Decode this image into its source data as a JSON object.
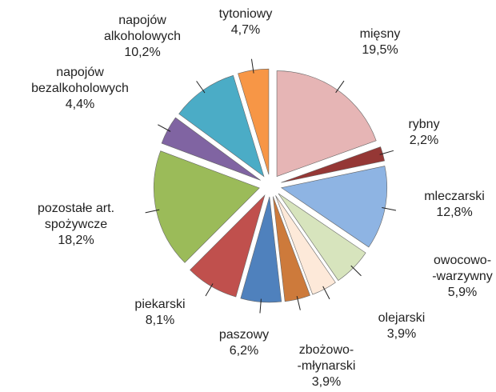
{
  "chart_data": {
    "type": "pie",
    "categories": [
      "mięsny",
      "rybny",
      "mleczarski",
      "owocowo-\n-warzywny",
      "olejarski",
      "zbożowo-\n-młynarski",
      "paszowy",
      "piekarski",
      "pozostałe art.\nspożywcze",
      "napojów\nbezalkoholowych",
      "napojów\nalkoholowych",
      "tytoniowy"
    ],
    "values": [
      19.5,
      2.2,
      12.8,
      5.9,
      3.9,
      3.9,
      6.2,
      8.1,
      18.2,
      4.4,
      10.2,
      4.7
    ],
    "value_labels": [
      "19,5%",
      "2,2%",
      "12,8%",
      "5,9%",
      "3,9%",
      "3,9%",
      "6,2%",
      "8,1%",
      "18,2%",
      "4,4%",
      "10,2%",
      "4,7%"
    ],
    "colors": [
      "#e6b5b5",
      "#953735",
      "#8eb4e3",
      "#d7e4bd",
      "#fde9d9",
      "#cd7a3b",
      "#4f81bd",
      "#c0504d",
      "#9bbb59",
      "#8064a2",
      "#4bacc6",
      "#f79646"
    ]
  }
}
